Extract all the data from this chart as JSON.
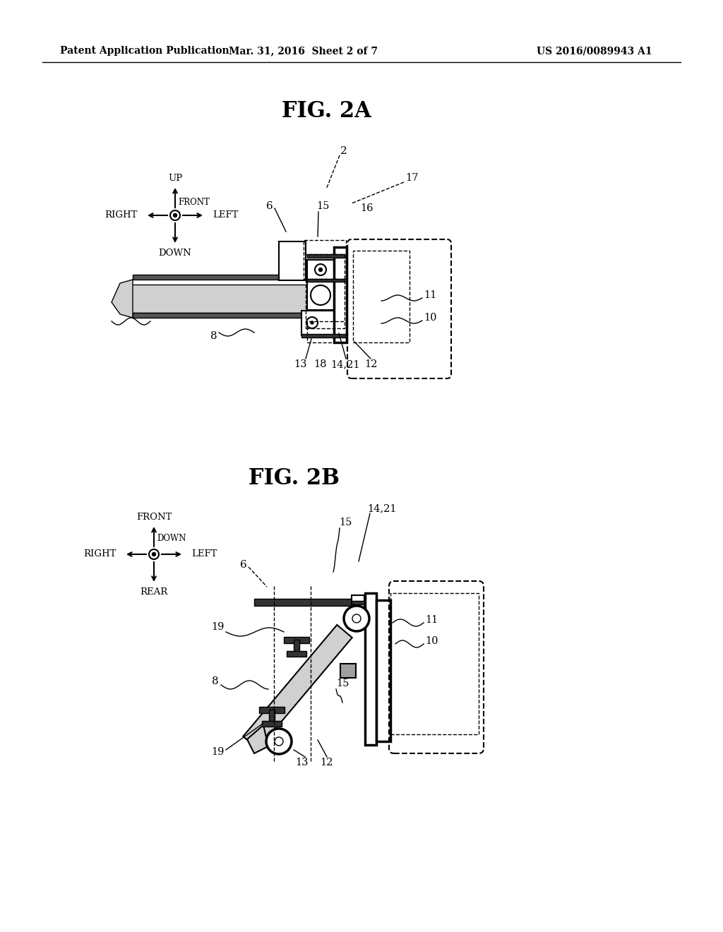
{
  "bg_color": "#ffffff",
  "header_left": "Patent Application Publication",
  "header_mid": "Mar. 31, 2016  Sheet 2 of 7",
  "header_right": "US 2016/0089943 A1",
  "fig2a_title": "FIG. 2A",
  "fig2b_title": "FIG. 2B"
}
